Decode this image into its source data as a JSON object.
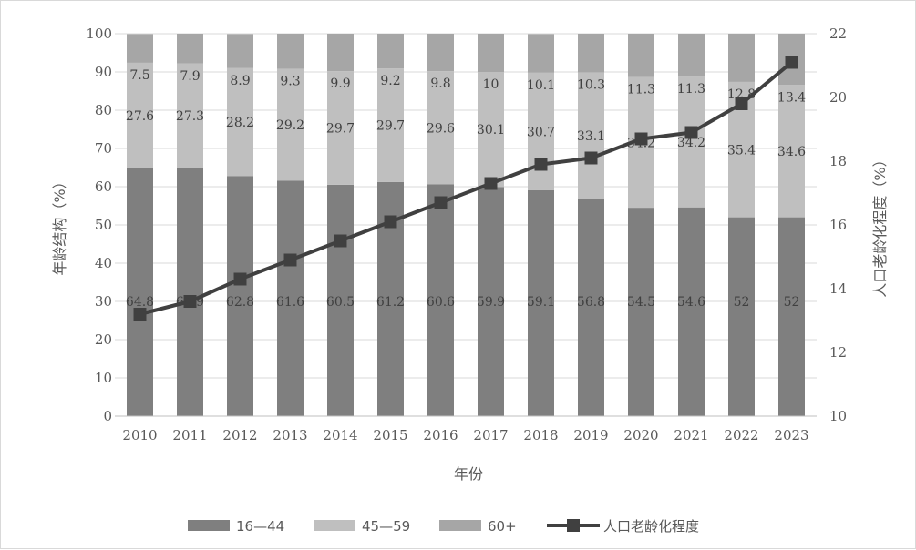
{
  "chart_data": {
    "type": "bar",
    "stacked": true,
    "secondary_type": "line",
    "categories": [
      "2010",
      "2011",
      "2012",
      "2013",
      "2014",
      "2015",
      "2016",
      "2017",
      "2018",
      "2019",
      "2020",
      "2021",
      "2022",
      "2023"
    ],
    "series": [
      {
        "name": "16—44",
        "axis": "left",
        "values": [
          64.8,
          64.9,
          62.8,
          61.6,
          60.5,
          61.2,
          60.6,
          59.9,
          59.1,
          56.8,
          54.5,
          54.6,
          52,
          52
        ],
        "color": "#7f7f7f"
      },
      {
        "name": "45—59",
        "axis": "left",
        "values": [
          27.6,
          27.3,
          28.2,
          29.2,
          29.7,
          29.7,
          29.6,
          30.1,
          30.7,
          33.1,
          34.2,
          34.2,
          35.4,
          34.6
        ],
        "color": "#bfbfbf"
      },
      {
        "name": "60+",
        "axis": "left",
        "values": [
          7.5,
          7.9,
          8.9,
          9.3,
          9.9,
          9.2,
          9.8,
          10,
          10.1,
          10.3,
          11.3,
          11.3,
          12.8,
          13.4
        ],
        "color": "#a6a6a6"
      },
      {
        "name": "人口老龄化程度",
        "axis": "right",
        "values": [
          13.2,
          13.6,
          14.3,
          14.9,
          15.5,
          16.1,
          16.7,
          17.3,
          17.9,
          18.1,
          18.7,
          18.9,
          19.8,
          21.1
        ],
        "color": "#404040"
      }
    ],
    "data_labels": {
      "16—44": [
        "64.8",
        "64.9",
        "62.8",
        "61.6",
        "60.5",
        "61.2",
        "60.6",
        "59.9",
        "59.1",
        "56.8",
        "54.5",
        "54.6",
        "52",
        "52"
      ],
      "45—59": [
        "27.6",
        "27.3",
        "28.2",
        "29.2",
        "29.7",
        "29.7",
        "29.6",
        "30.1",
        "30.7",
        "33.1",
        "34.2",
        "34.2",
        "35.4",
        "34.6"
      ],
      "60+": [
        "7.5",
        "7.9",
        "8.9",
        "9.3",
        "9.9",
        "9.2",
        "9.8",
        "10",
        "10.1",
        "10.3",
        "11.3",
        "11.3",
        "12.8",
        "13.4"
      ]
    },
    "xlabel": "年份",
    "ylabel": "年龄结构（%）",
    "y2label": "人口老龄化程度（%）",
    "ylim": [
      0,
      100
    ],
    "y2lim": [
      10,
      22
    ],
    "yticks": [
      "0",
      "10",
      "20",
      "30",
      "40",
      "50",
      "60",
      "70",
      "80",
      "90",
      "100"
    ],
    "y2ticks": [
      "10",
      "12",
      "14",
      "16",
      "18",
      "20",
      "22"
    ],
    "grid": true,
    "legend_position": "bottom"
  }
}
